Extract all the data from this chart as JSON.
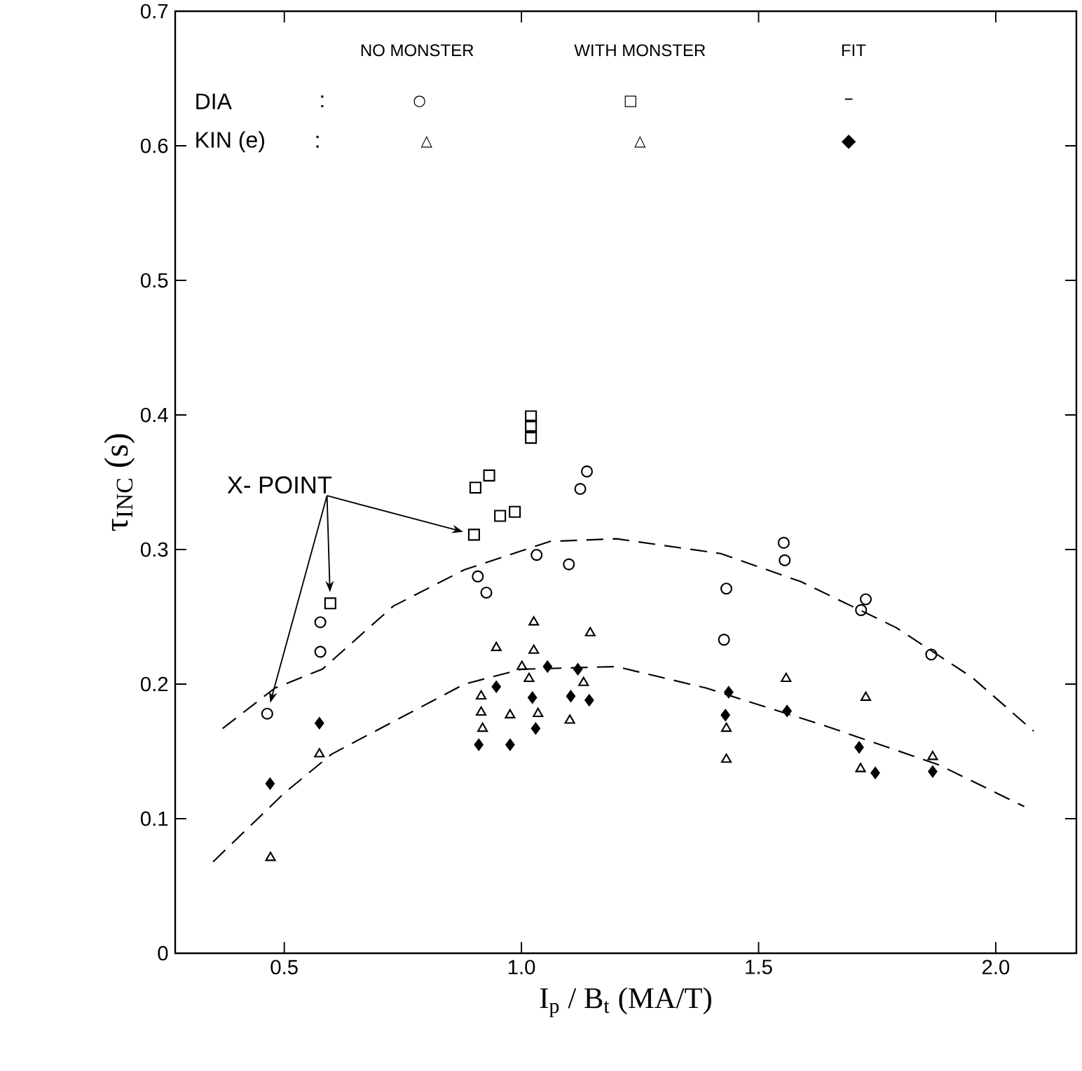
{
  "chart_data": {
    "type": "scatter",
    "xlabel": "I$_{p}$ / B$_{t}$   (MA/T)",
    "ylabel": "τ$_{INC}$ (s)",
    "xlim": [
      0.27,
      2.17
    ],
    "ylim": [
      0,
      0.7
    ],
    "xticks": [
      {
        "value": 0.5,
        "label": "0.5"
      },
      {
        "value": 1,
        "label": "1.0"
      },
      {
        "value": 1.5,
        "label": "1.5"
      },
      {
        "value": 2,
        "label": "2.0"
      }
    ],
    "yticks": [
      0,
      0.1,
      0.2,
      0.3,
      0.4,
      0.5,
      0.6,
      0.7
    ],
    "grid": false,
    "annotations": [
      "NO MONSTER",
      "WITH MONSTER",
      "FIT",
      "DIA",
      ":",
      "KIN (e)",
      ":",
      "X- POINT",
      "○",
      "□",
      "–",
      "△",
      "△",
      "◆"
    ],
    "series": [
      {
        "type": "scatter",
        "marker": "circle",
        "color": "#000000",
        "x": [
          0.464,
          0.576,
          0.576,
          0.908,
          0.926,
          1.032,
          1.1,
          1.124,
          1.138,
          1.432,
          1.427,
          1.553,
          1.555,
          1.726,
          1.716,
          1.864
        ],
        "values": [
          0.178,
          0.224,
          0.246,
          0.28,
          0.268,
          0.296,
          0.289,
          0.345,
          0.358,
          0.271,
          0.233,
          0.305,
          0.292,
          0.263,
          0.255,
          0.222
        ]
      },
      {
        "type": "scatter",
        "marker": "square",
        "color": "#000000",
        "x": [
          0.597,
          0.9,
          0.903,
          0.932,
          0.955,
          0.986,
          1.02,
          1.02,
          1.02
        ],
        "values": [
          0.26,
          0.311,
          0.346,
          0.355,
          0.325,
          0.328,
          0.383,
          0.392,
          0.399
        ]
      },
      {
        "type": "scatter",
        "marker": "triangle",
        "color": "#000000",
        "x": [
          0.471,
          0.574,
          0.947,
          1.026,
          1.026,
          1.145,
          1.001,
          1.016,
          0.915,
          0.915,
          0.918,
          0.976,
          1.035,
          1.102,
          1.131,
          1.558,
          1.726,
          1.432,
          1.432,
          1.715,
          1.867
        ],
        "values": [
          0.071,
          0.148,
          0.227,
          0.246,
          0.225,
          0.238,
          0.213,
          0.204,
          0.191,
          0.179,
          0.167,
          0.177,
          0.178,
          0.173,
          0.201,
          0.204,
          0.19,
          0.167,
          0.144,
          0.137,
          0.146
        ]
      },
      {
        "type": "scatter",
        "marker": "diamond",
        "color": "#000000",
        "x": [
          0.47,
          0.574,
          0.947,
          0.91,
          0.976,
          1.023,
          1.03,
          1.055,
          1.119,
          1.104,
          1.143,
          1.437,
          1.43,
          1.56,
          1.712,
          1.746,
          1.867
        ],
        "values": [
          0.126,
          0.171,
          0.198,
          0.155,
          0.155,
          0.19,
          0.167,
          0.213,
          0.211,
          0.191,
          0.188,
          0.194,
          0.177,
          0.18,
          0.153,
          0.134,
          0.135
        ]
      },
      {
        "type": "line",
        "marker": "none",
        "line_style": "dashed",
        "color": "#000000",
        "x": [
          0.37,
          0.48,
          0.58,
          0.73,
          0.88,
          1.06,
          1.2,
          1.42,
          1.59,
          1.79,
          1.95,
          2.08
        ],
        "values": [
          0.167,
          0.197,
          0.211,
          0.258,
          0.285,
          0.306,
          0.308,
          0.297,
          0.276,
          0.242,
          0.205,
          0.165
        ]
      },
      {
        "type": "line",
        "marker": "none",
        "line_style": "dashed",
        "color": "#000000",
        "x": [
          0.35,
          0.5,
          0.6,
          0.88,
          1.0,
          1.2,
          1.39,
          1.64,
          1.88,
          2.06
        ],
        "values": [
          0.068,
          0.119,
          0.148,
          0.2,
          0.211,
          0.213,
          0.197,
          0.169,
          0.14,
          0.109
        ]
      }
    ]
  }
}
